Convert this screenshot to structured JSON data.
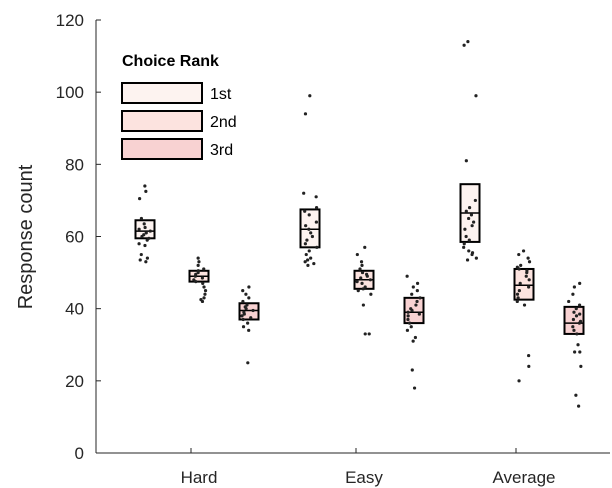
{
  "chart_data": {
    "type": "box",
    "title": "",
    "xlabel": "",
    "ylabel": "Response count",
    "ylim": [
      0,
      120
    ],
    "yticks": [
      0,
      20,
      40,
      60,
      80,
      100,
      120
    ],
    "grid": false,
    "categories": [
      "Hard",
      "Easy",
      "Average"
    ],
    "legend": {
      "title": "Choice Rank",
      "placement": "top-left"
    },
    "series": [
      {
        "name": "1st",
        "color": "#FDF3F0",
        "boxes": [
          {
            "category": "Hard",
            "q1": 59.5,
            "median": 61.5,
            "q3": 64.5,
            "points": [
              74,
              72.5,
              70.5,
              65,
              63.5,
              62.5,
              62,
              61.5,
              61,
              60.5,
              60,
              59.5,
              59,
              58,
              57.5,
              55,
              54,
              53.5,
              53
            ]
          },
          {
            "category": "Easy",
            "q1": 57,
            "median": 62,
            "q3": 67.5,
            "points": [
              99,
              94,
              72,
              71,
              68,
              67,
              66,
              64,
              63,
              62,
              61,
              60,
              59,
              58,
              57,
              56,
              55,
              54,
              53.5,
              53,
              52.5,
              52
            ]
          },
          {
            "category": "Average",
            "q1": 58.5,
            "median": 66.5,
            "q3": 74.5,
            "points": [
              114,
              113,
              99,
              81,
              70,
              68,
              67,
              66,
              65,
              64,
              63,
              62,
              60,
              59,
              58,
              57,
              56,
              55.5,
              55,
              54,
              53.5
            ]
          }
        ]
      },
      {
        "name": "2nd",
        "color": "#FCE3DF",
        "boxes": [
          {
            "category": "Hard",
            "q1": 47.5,
            "median": 49,
            "q3": 50.5,
            "points": [
              54,
              53,
              52,
              51,
              50.5,
              50,
              49.5,
              49,
              48.5,
              48,
              47.5,
              47,
              46,
              45,
              44,
              43,
              42,
              42.5
            ]
          },
          {
            "category": "Easy",
            "q1": 45.5,
            "median": 48,
            "q3": 50.5,
            "points": [
              57,
              55,
              53,
              52,
              51,
              50,
              49.5,
              49,
              48.5,
              48,
              47.5,
              47,
              46,
              45.5,
              45,
              44,
              41,
              33,
              33
            ]
          },
          {
            "category": "Average",
            "q1": 42.5,
            "median": 46.5,
            "q3": 51,
            "points": [
              56,
              55,
              54,
              53,
              52,
              51.5,
              51,
              50.5,
              50,
              49,
              48,
              47,
              46,
              45,
              44,
              43,
              42,
              41,
              27,
              24,
              20
            ]
          }
        ]
      },
      {
        "name": "3rd",
        "color": "#F8D2D2",
        "boxes": [
          {
            "category": "Hard",
            "q1": 37,
            "median": 39.5,
            "q3": 41.5,
            "points": [
              46,
              45,
              44,
              43,
              42,
              41,
              40.5,
              40,
              39.5,
              39,
              38.5,
              38,
              37.5,
              37,
              36,
              35,
              34,
              25
            ]
          },
          {
            "category": "Easy",
            "q1": 36,
            "median": 39,
            "q3": 43,
            "points": [
              49,
              47,
              46,
              45,
              44,
              43,
              42,
              41,
              40,
              39.5,
              39,
              38.5,
              38,
              37,
              36,
              35,
              34,
              32,
              31,
              23,
              18
            ]
          },
          {
            "category": "Average",
            "q1": 33,
            "median": 36,
            "q3": 40.5,
            "points": [
              47,
              46,
              44,
              42,
              41,
              40,
              39,
              38.5,
              38,
              37,
              36.5,
              36,
              35,
              34,
              33,
              30,
              28,
              28,
              24,
              16,
              13
            ]
          }
        ]
      }
    ]
  }
}
